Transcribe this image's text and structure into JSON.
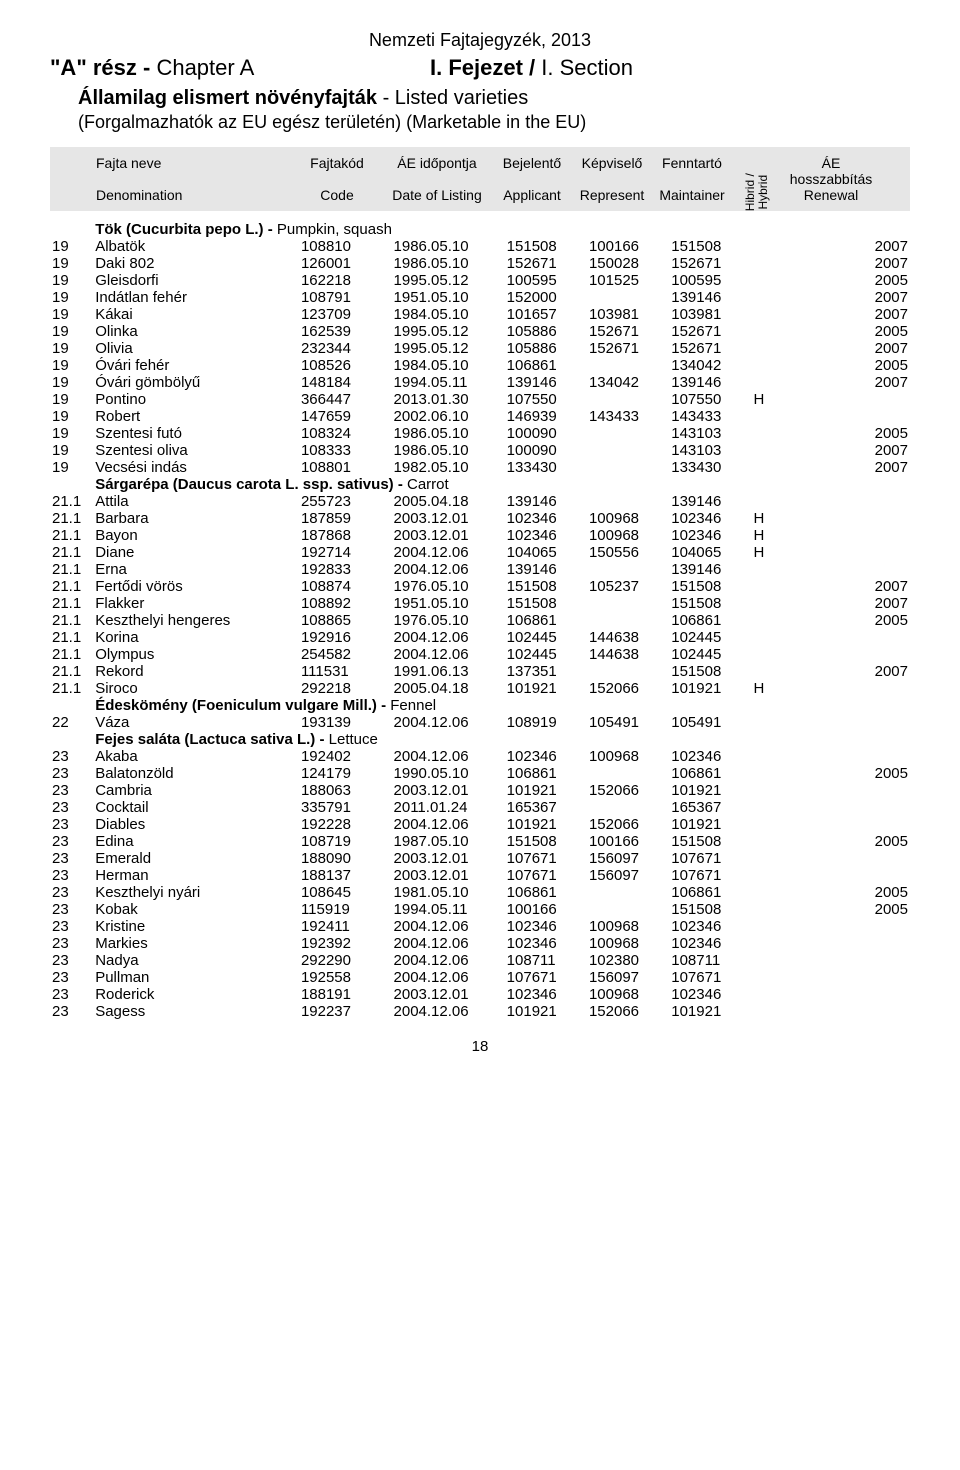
{
  "header": {
    "top_title": "Nemzeti Fajtajegyzék, 2013",
    "chapter_left_bold": "\"A\" rész - ",
    "chapter_left_light": "Chapter A",
    "chapter_right_bold": "I. Fejezet / ",
    "chapter_right_light": "I. Section",
    "subtitle_bold": "Államilag elismert növényfajták",
    "subtitle_light": " - Listed varieties",
    "subtitle2": "(Forgalmazhatók az EU egész területén) (Marketable in the EU)"
  },
  "col_headers": {
    "r1": {
      "name": "Fajta neve",
      "code": "Fajtakód",
      "date": "ÁE időpontja",
      "app": "Bejelentő",
      "rep": "Képviselő",
      "main": "Fenntartó",
      "ren": "ÁE"
    },
    "r2": {
      "name": "",
      "code": "",
      "date": "",
      "app": "",
      "rep": "",
      "main": "",
      "ren": "hosszabbítás"
    },
    "r3": {
      "name": "Denomination",
      "code": "Code",
      "date": "Date of Listing",
      "app": "Applicant",
      "rep": "Represent",
      "main": "Maintainer",
      "ren": "Renewal"
    },
    "hybrid_hu": "Hibrid /",
    "hybrid_en": "Hybrid"
  },
  "page_number": "18",
  "sections": [
    {
      "title_bold": "Tök (Cucurbita pepo L.) - ",
      "title_light": "Pumpkin, squash",
      "rows": [
        {
          "idx": "19",
          "name": "Albatök",
          "code": "108810",
          "date": "1986.05.10",
          "app": "151508",
          "rep": "100166",
          "main": "151508",
          "hyb": "",
          "ren": "2007"
        },
        {
          "idx": "19",
          "name": "Daki 802",
          "code": "126001",
          "date": "1986.05.10",
          "app": "152671",
          "rep": "150028",
          "main": "152671",
          "hyb": "",
          "ren": "2007"
        },
        {
          "idx": "19",
          "name": "Gleisdorfi",
          "code": "162218",
          "date": "1995.05.12",
          "app": "100595",
          "rep": "101525",
          "main": "100595",
          "hyb": "",
          "ren": "2005"
        },
        {
          "idx": "19",
          "name": "Indátlan fehér",
          "code": "108791",
          "date": "1951.05.10",
          "app": "152000",
          "rep": "",
          "main": "139146",
          "hyb": "",
          "ren": "2007"
        },
        {
          "idx": "19",
          "name": "Kákai",
          "code": "123709",
          "date": "1984.05.10",
          "app": "101657",
          "rep": "103981",
          "main": "103981",
          "hyb": "",
          "ren": "2007"
        },
        {
          "idx": "19",
          "name": "Olinka",
          "code": "162539",
          "date": "1995.05.12",
          "app": "105886",
          "rep": "152671",
          "main": "152671",
          "hyb": "",
          "ren": "2005"
        },
        {
          "idx": "19",
          "name": "Olivia",
          "code": "232344",
          "date": "1995.05.12",
          "app": "105886",
          "rep": "152671",
          "main": "152671",
          "hyb": "",
          "ren": "2007"
        },
        {
          "idx": "19",
          "name": "Óvári fehér",
          "code": "108526",
          "date": "1984.05.10",
          "app": "106861",
          "rep": "",
          "main": "134042",
          "hyb": "",
          "ren": "2005"
        },
        {
          "idx": "19",
          "name": "Óvári gömbölyű",
          "code": "148184",
          "date": "1994.05.11",
          "app": "139146",
          "rep": "134042",
          "main": "139146",
          "hyb": "",
          "ren": "2007"
        },
        {
          "idx": "19",
          "name": "Pontino",
          "code": "366447",
          "date": "2013.01.30",
          "app": "107550",
          "rep": "",
          "main": "107550",
          "hyb": "H",
          "ren": ""
        },
        {
          "idx": "19",
          "name": "Robert",
          "code": "147659",
          "date": "2002.06.10",
          "app": "146939",
          "rep": "143433",
          "main": "143433",
          "hyb": "",
          "ren": ""
        },
        {
          "idx": "19",
          "name": "Szentesi futó",
          "code": "108324",
          "date": "1986.05.10",
          "app": "100090",
          "rep": "",
          "main": "143103",
          "hyb": "",
          "ren": "2005"
        },
        {
          "idx": "19",
          "name": "Szentesi oliva",
          "code": "108333",
          "date": "1986.05.10",
          "app": "100090",
          "rep": "",
          "main": "143103",
          "hyb": "",
          "ren": "2007"
        },
        {
          "idx": "19",
          "name": "Vecsési indás",
          "code": "108801",
          "date": "1982.05.10",
          "app": "133430",
          "rep": "",
          "main": "133430",
          "hyb": "",
          "ren": "2007"
        }
      ]
    },
    {
      "title_bold": "Sárgarépa (Daucus carota L. ssp. sativus) - ",
      "title_light": "Carrot",
      "rows": [
        {
          "idx": "21.1",
          "name": "Attila",
          "code": "255723",
          "date": "2005.04.18",
          "app": "139146",
          "rep": "",
          "main": "139146",
          "hyb": "",
          "ren": ""
        },
        {
          "idx": "21.1",
          "name": "Barbara",
          "code": "187859",
          "date": "2003.12.01",
          "app": "102346",
          "rep": "100968",
          "main": "102346",
          "hyb": "H",
          "ren": ""
        },
        {
          "idx": "21.1",
          "name": "Bayon",
          "code": "187868",
          "date": "2003.12.01",
          "app": "102346",
          "rep": "100968",
          "main": "102346",
          "hyb": "H",
          "ren": ""
        },
        {
          "idx": "21.1",
          "name": "Diane",
          "code": "192714",
          "date": "2004.12.06",
          "app": "104065",
          "rep": "150556",
          "main": "104065",
          "hyb": "H",
          "ren": ""
        },
        {
          "idx": "21.1",
          "name": "Erna",
          "code": "192833",
          "date": "2004.12.06",
          "app": "139146",
          "rep": "",
          "main": "139146",
          "hyb": "",
          "ren": ""
        },
        {
          "idx": "21.1",
          "name": "Fertődi vörös",
          "code": "108874",
          "date": "1976.05.10",
          "app": "151508",
          "rep": "105237",
          "main": "151508",
          "hyb": "",
          "ren": "2007"
        },
        {
          "idx": "21.1",
          "name": "Flakker",
          "code": "108892",
          "date": "1951.05.10",
          "app": "151508",
          "rep": "",
          "main": "151508",
          "hyb": "",
          "ren": "2007"
        },
        {
          "idx": "21.1",
          "name": "Keszthelyi hengeres",
          "code": "108865",
          "date": "1976.05.10",
          "app": "106861",
          "rep": "",
          "main": "106861",
          "hyb": "",
          "ren": "2005"
        },
        {
          "idx": "21.1",
          "name": "Korina",
          "code": "192916",
          "date": "2004.12.06",
          "app": "102445",
          "rep": "144638",
          "main": "102445",
          "hyb": "",
          "ren": ""
        },
        {
          "idx": "21.1",
          "name": "Olympus",
          "code": "254582",
          "date": "2004.12.06",
          "app": "102445",
          "rep": "144638",
          "main": "102445",
          "hyb": "",
          "ren": ""
        },
        {
          "idx": "21.1",
          "name": "Rekord",
          "code": "111531",
          "date": "1991.06.13",
          "app": "137351",
          "rep": "",
          "main": "151508",
          "hyb": "",
          "ren": "2007"
        },
        {
          "idx": "21.1",
          "name": "Siroco",
          "code": "292218",
          "date": "2005.04.18",
          "app": "101921",
          "rep": "152066",
          "main": "101921",
          "hyb": "H",
          "ren": ""
        }
      ]
    },
    {
      "title_bold": "Édeskömény (Foeniculum vulgare Mill.) - ",
      "title_light": "Fennel",
      "rows": [
        {
          "idx": "22",
          "name": "Váza",
          "code": "193139",
          "date": "2004.12.06",
          "app": "108919",
          "rep": "105491",
          "main": "105491",
          "hyb": "",
          "ren": ""
        }
      ]
    },
    {
      "title_bold": "Fejes saláta (Lactuca sativa L.) - ",
      "title_light": "Lettuce",
      "rows": [
        {
          "idx": "23",
          "name": "Akaba",
          "code": "192402",
          "date": "2004.12.06",
          "app": "102346",
          "rep": "100968",
          "main": "102346",
          "hyb": "",
          "ren": ""
        },
        {
          "idx": "23",
          "name": "Balatonzöld",
          "code": "124179",
          "date": "1990.05.10",
          "app": "106861",
          "rep": "",
          "main": "106861",
          "hyb": "",
          "ren": "2005"
        },
        {
          "idx": "23",
          "name": "Cambria",
          "code": "188063",
          "date": "2003.12.01",
          "app": "101921",
          "rep": "152066",
          "main": "101921",
          "hyb": "",
          "ren": ""
        },
        {
          "idx": "23",
          "name": "Cocktail",
          "code": "335791",
          "date": "2011.01.24",
          "app": "165367",
          "rep": "",
          "main": "165367",
          "hyb": "",
          "ren": ""
        },
        {
          "idx": "23",
          "name": "Diables",
          "code": "192228",
          "date": "2004.12.06",
          "app": "101921",
          "rep": "152066",
          "main": "101921",
          "hyb": "",
          "ren": ""
        },
        {
          "idx": "23",
          "name": "Edina",
          "code": "108719",
          "date": "1987.05.10",
          "app": "151508",
          "rep": "100166",
          "main": "151508",
          "hyb": "",
          "ren": "2005"
        },
        {
          "idx": "23",
          "name": "Emerald",
          "code": "188090",
          "date": "2003.12.01",
          "app": "107671",
          "rep": "156097",
          "main": "107671",
          "hyb": "",
          "ren": ""
        },
        {
          "idx": "23",
          "name": "Herman",
          "code": "188137",
          "date": "2003.12.01",
          "app": "107671",
          "rep": "156097",
          "main": "107671",
          "hyb": "",
          "ren": ""
        },
        {
          "idx": "23",
          "name": "Keszthelyi nyári",
          "code": "108645",
          "date": "1981.05.10",
          "app": "106861",
          "rep": "",
          "main": "106861",
          "hyb": "",
          "ren": "2005"
        },
        {
          "idx": "23",
          "name": "Kobak",
          "code": "115919",
          "date": "1994.05.11",
          "app": "100166",
          "rep": "",
          "main": "151508",
          "hyb": "",
          "ren": "2005"
        },
        {
          "idx": "23",
          "name": "Kristine",
          "code": "192411",
          "date": "2004.12.06",
          "app": "102346",
          "rep": "100968",
          "main": "102346",
          "hyb": "",
          "ren": ""
        },
        {
          "idx": "23",
          "name": "Markies",
          "code": "192392",
          "date": "2004.12.06",
          "app": "102346",
          "rep": "100968",
          "main": "102346",
          "hyb": "",
          "ren": ""
        },
        {
          "idx": "23",
          "name": "Nadya",
          "code": "292290",
          "date": "2004.12.06",
          "app": "108711",
          "rep": "102380",
          "main": "108711",
          "hyb": "",
          "ren": ""
        },
        {
          "idx": "23",
          "name": "Pullman",
          "code": "192558",
          "date": "2004.12.06",
          "app": "107671",
          "rep": "156097",
          "main": "107671",
          "hyb": "",
          "ren": ""
        },
        {
          "idx": "23",
          "name": "Roderick",
          "code": "188191",
          "date": "2003.12.01",
          "app": "102346",
          "rep": "100968",
          "main": "102346",
          "hyb": "",
          "ren": ""
        },
        {
          "idx": "23",
          "name": "Sagess",
          "code": "192237",
          "date": "2004.12.06",
          "app": "101921",
          "rep": "152066",
          "main": "101921",
          "hyb": "",
          "ren": ""
        }
      ]
    }
  ]
}
